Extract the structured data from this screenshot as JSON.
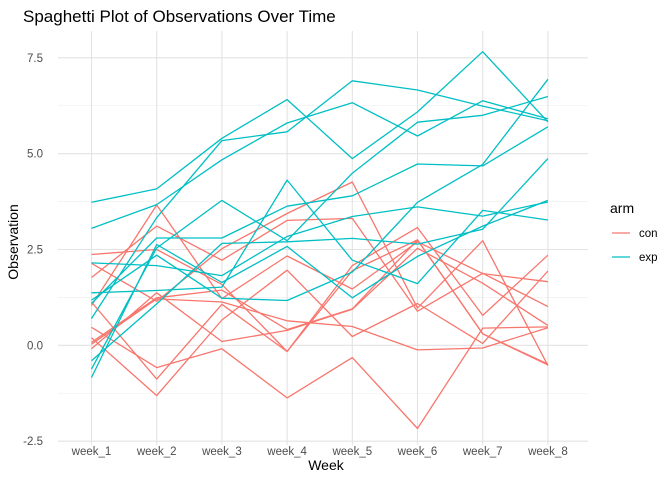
{
  "chart_data": {
    "type": "line",
    "title": "Spaghetti Plot of Observations Over Time",
    "xlabel": "Week",
    "ylabel": "Observation",
    "categories": [
      "week_1",
      "week_2",
      "week_3",
      "week_4",
      "week_5",
      "week_6",
      "week_7",
      "week_8"
    ],
    "yticks": [
      -2.5,
      0.0,
      2.5,
      5.0,
      7.5
    ],
    "ytick_labels": [
      "-2.5",
      "0.0",
      "2.5",
      "5.0",
      "7.5"
    ],
    "ylim": [
      -2.6,
      8.2
    ],
    "grid": true,
    "legend": {
      "title": "arm",
      "position": "right",
      "entries": [
        {
          "label": "con",
          "color": "#F8766D"
        },
        {
          "label": "exp",
          "color": "#00BFC4"
        }
      ]
    },
    "series": [
      {
        "arm": "con",
        "values": [
          0.2,
          -1.31,
          0.66,
          1.96,
          0.23,
          1.09,
          0.05,
          1.94
        ]
      },
      {
        "arm": "con",
        "values": [
          1.13,
          -0.88,
          1.07,
          -0.16,
          1.95,
          2.75,
          0.3,
          -0.51
        ]
      },
      {
        "arm": "con",
        "values": [
          1.77,
          3.11,
          2.22,
          3.26,
          3.31,
          0.89,
          1.88,
          1.01
        ]
      },
      {
        "arm": "con",
        "values": [
          1.04,
          3.66,
          1.22,
          2.33,
          1.47,
          2.7,
          1.87,
          1.66
        ]
      },
      {
        "arm": "con",
        "values": [
          0.47,
          -0.58,
          -0.09,
          -1.37,
          -0.32,
          -2.17,
          0.45,
          0.48
        ]
      },
      {
        "arm": "con",
        "values": [
          2.37,
          2.5,
          1.59,
          -0.16,
          2.08,
          3.07,
          0.78,
          2.35
        ]
      },
      {
        "arm": "con",
        "values": [
          0.03,
          1.21,
          1.13,
          0.64,
          0.49,
          -0.12,
          -0.07,
          0.46
        ]
      },
      {
        "arm": "con",
        "values": [
          -0.09,
          1.37,
          0.1,
          0.39,
          0.94,
          2.53,
          1.62,
          0.52
        ]
      },
      {
        "arm": "con",
        "values": [
          0.08,
          1.24,
          1.44,
          0.41,
          0.95,
          2.75,
          0.3,
          -0.49
        ]
      },
      {
        "arm": "con",
        "values": [
          2.14,
          1.15,
          2.52,
          3.44,
          4.26,
          0.97,
          2.73,
          -0.53
        ]
      },
      {
        "arm": "exp",
        "values": [
          3.05,
          3.67,
          4.84,
          5.8,
          6.33,
          5.46,
          6.38,
          5.91
        ]
      },
      {
        "arm": "exp",
        "values": [
          -0.84,
          2.63,
          1.64,
          2.58,
          1.24,
          2.32,
          3.11,
          3.78
        ]
      },
      {
        "arm": "exp",
        "values": [
          2.15,
          2.08,
          1.82,
          2.84,
          3.36,
          3.61,
          3.37,
          3.74
        ]
      },
      {
        "arm": "exp",
        "values": [
          -0.62,
          2.54,
          3.78,
          2.73,
          4.49,
          5.82,
          6.0,
          6.49
        ]
      },
      {
        "arm": "exp",
        "values": [
          0.7,
          3.33,
          5.34,
          5.57,
          6.9,
          6.66,
          6.24,
          5.86
        ]
      },
      {
        "arm": "exp",
        "values": [
          3.73,
          4.08,
          5.4,
          6.41,
          4.87,
          6.09,
          7.66,
          5.83
        ]
      },
      {
        "arm": "exp",
        "values": [
          1.18,
          2.35,
          1.23,
          1.17,
          1.91,
          3.73,
          4.72,
          6.94
        ]
      },
      {
        "arm": "exp",
        "values": [
          1.37,
          1.43,
          1.52,
          4.31,
          2.22,
          1.61,
          3.52,
          3.27
        ]
      },
      {
        "arm": "exp",
        "values": [
          -0.4,
          1.08,
          2.66,
          2.7,
          2.79,
          2.64,
          3.03,
          4.87
        ]
      },
      {
        "arm": "exp",
        "values": [
          1.09,
          2.8,
          2.8,
          3.63,
          3.9,
          4.73,
          4.68,
          5.7
        ]
      }
    ]
  }
}
